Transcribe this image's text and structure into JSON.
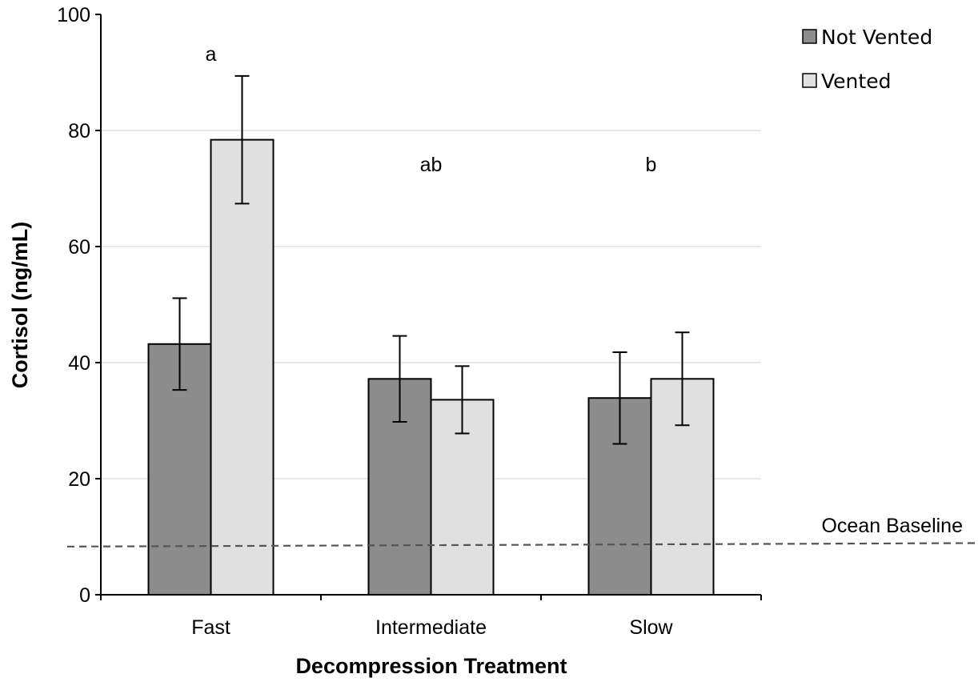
{
  "chart_data": {
    "type": "bar",
    "title": "",
    "xlabel": "Decompression Treatment",
    "ylabel": "Cortisol (ng/mL)",
    "ylim": [
      0,
      100
    ],
    "yticks": [
      0,
      20,
      40,
      60,
      80,
      100
    ],
    "grid": true,
    "legend_position": "top-right",
    "categories": [
      "Fast",
      "Intermediate",
      "Slow"
    ],
    "series": [
      {
        "name": "Not Vented",
        "color": "#8c8c8c",
        "values": [
          43.2,
          37.2,
          33.9
        ],
        "errors": [
          7.9,
          7.4,
          7.9
        ]
      },
      {
        "name": "Vented",
        "color": "#e0e0e0",
        "values": [
          78.4,
          33.6,
          37.2
        ],
        "errors": [
          11.0,
          5.8,
          8.0
        ]
      }
    ],
    "significance_labels": [
      "a",
      "ab",
      "b"
    ],
    "significance_y": [
      92,
      73,
      73
    ],
    "reference_line": {
      "label": "Ocean Baseline",
      "y_start": 8.3,
      "y_end": 8.9
    }
  }
}
